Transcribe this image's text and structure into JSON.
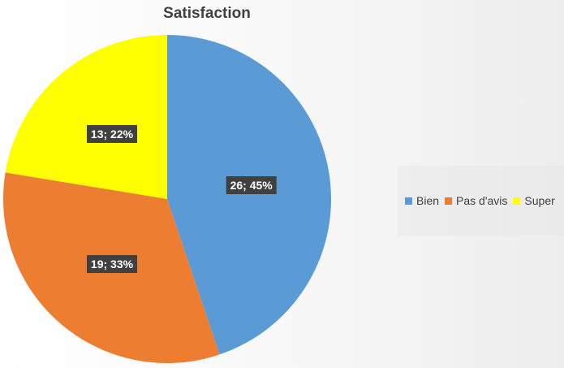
{
  "chart_data": {
    "type": "pie",
    "title": "Satisfaction",
    "categories": [
      "Bien",
      "Pas d'avis",
      "Super"
    ],
    "values": [
      26,
      19,
      13
    ],
    "percentages": [
      "45%",
      "33%",
      "22%"
    ],
    "data_labels": [
      "26; 45%",
      "19; 33%",
      "13; 22%"
    ],
    "colors": [
      "#5b9bd5",
      "#ed7d31",
      "#ffff00"
    ],
    "start_angle_deg": 0,
    "direction": "clockwise",
    "legend_position": "right"
  }
}
